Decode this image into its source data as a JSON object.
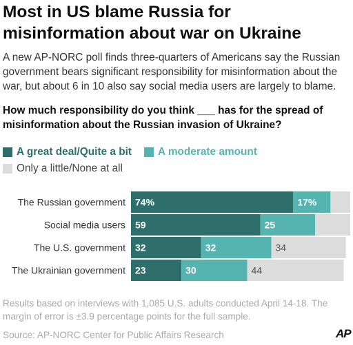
{
  "title": "Most in US blame Russia for misinformation about war on Ukraine",
  "subtitle": "A new AP-NORC poll finds three-quarters of Americans say the Russian government bears significant responsibility for misinformation about the war, but about 6 in 10 also say social media users are largely to blame.",
  "question": "How much responsibility do you think ___ has for the spread of misinformation about the Russian invasion of Ukraine?",
  "notes": "Results based on interviews with 1,085 U.S. adults conducted April 14-18. The margin of error is ±3.9 percentage points for the full sample.",
  "source": "Source: AP-NORC Center for Public Affairs Research",
  "logo": "AP",
  "colors": {
    "great_deal": "#2e6e6b",
    "moderate": "#56b4b0",
    "little_none": "#dcdcdc",
    "label_dark_bg": "#ffffff",
    "label_light_bg": "#555555"
  },
  "chart_data": {
    "type": "bar",
    "orientation": "horizontal",
    "stacked": true,
    "categories": [
      "The Russian government",
      "Social media users",
      "The U.S. government",
      "The Ukrainian government"
    ],
    "series": [
      {
        "name": "A great deal/Quite a bit",
        "values": [
          74,
          59,
          32,
          23
        ],
        "labels": [
          "74%",
          "59",
          "32",
          "23"
        ]
      },
      {
        "name": "A moderate amount",
        "values": [
          17,
          25,
          32,
          30
        ],
        "labels": [
          "17%",
          "25",
          "32",
          "30"
        ]
      },
      {
        "name": "Only a little/None at all",
        "values": [
          9,
          16,
          34,
          44
        ],
        "labels": [
          "",
          "",
          "34",
          "44"
        ]
      }
    ],
    "xlim": [
      0,
      100
    ],
    "legend_position": "top"
  }
}
